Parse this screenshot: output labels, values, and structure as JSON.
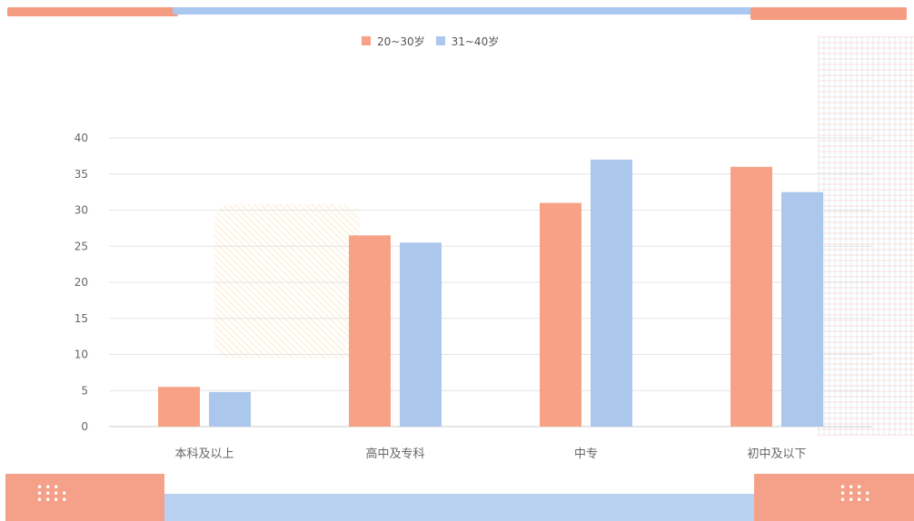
{
  "legend": {
    "series_0": "20~30岁",
    "series_1": "31~40岁"
  },
  "colors": {
    "series_0": "#f7a286",
    "series_1": "#abc8ec",
    "accent_orange": "#f59b82",
    "accent_blue": "#a9c7ef"
  },
  "chart_data": {
    "type": "bar",
    "categories": [
      "本科及以上",
      "高中及专科",
      "中专",
      "初中及以下"
    ],
    "series": [
      {
        "name": "20~30岁",
        "values": [
          5.5,
          26.5,
          31,
          36
        ]
      },
      {
        "name": "31~40岁",
        "values": [
          4.8,
          25.5,
          37,
          32.5
        ]
      }
    ],
    "ylim": [
      0,
      40
    ],
    "yticks": [
      0,
      5,
      10,
      15,
      20,
      25,
      30,
      35,
      40
    ],
    "grid": true,
    "legend_position": "top"
  }
}
